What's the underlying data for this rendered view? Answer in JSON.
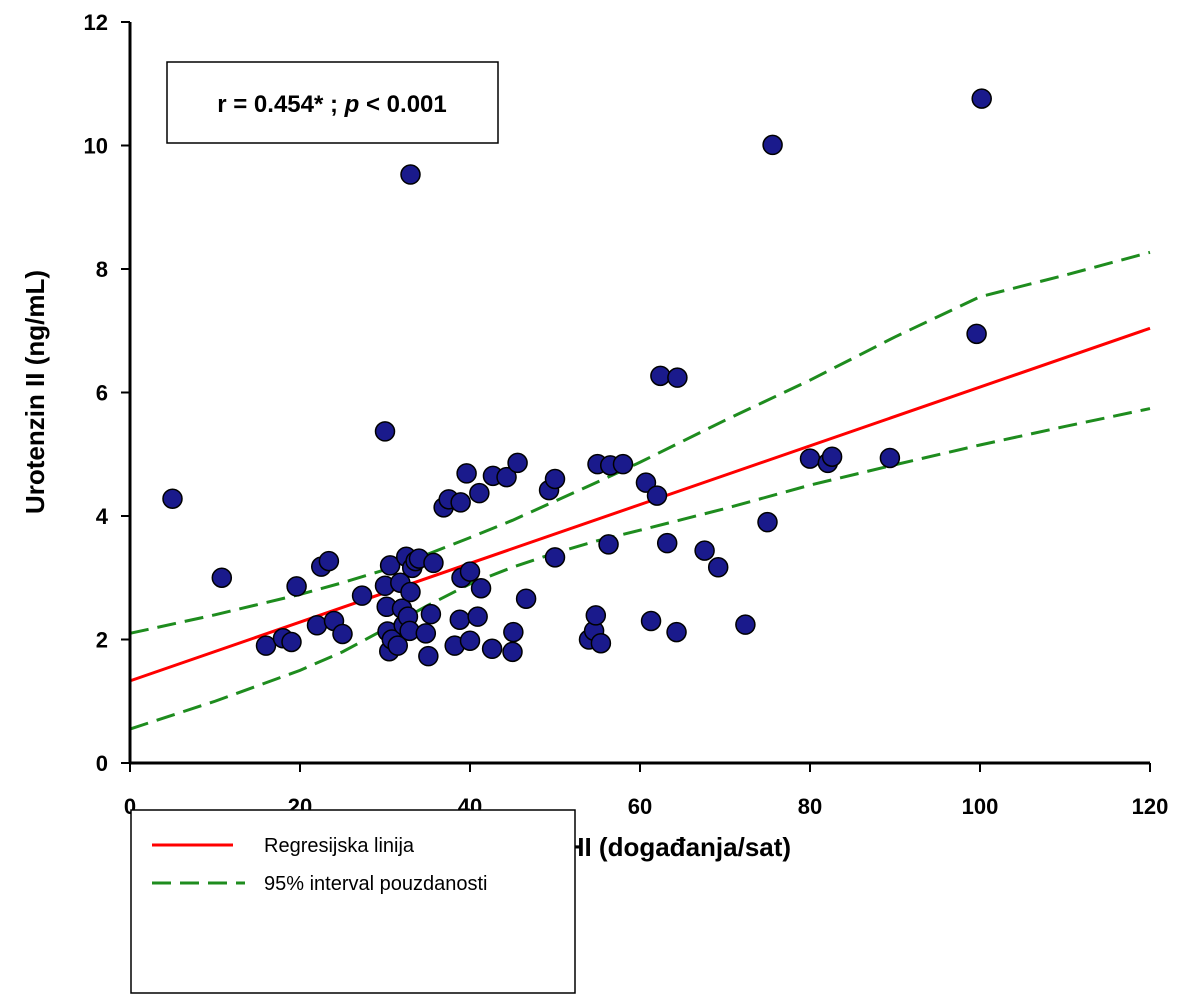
{
  "chart_data": {
    "type": "scatter",
    "xlabel": "AHI (događanja/sat)",
    "ylabel": "Urotenzin II (ng/mL)",
    "xlim": [
      0,
      120
    ],
    "ylim": [
      0,
      12
    ],
    "xticks": [
      "0",
      "20",
      "40",
      "60",
      "80",
      "100",
      "120"
    ],
    "yticks": [
      "0",
      "2",
      "4",
      "6",
      "8",
      "10",
      "12"
    ],
    "annotation": {
      "prefix": "r = 0.454* ; ",
      "p_symbol": "p",
      "suffix": " < 0.001"
    },
    "colors": {
      "points": "#1a1a8c",
      "regression": "#ff0000",
      "confidence": "#1e8c1e"
    },
    "legend": {
      "position": "bottom-left",
      "entries": [
        {
          "label": "Regresijska linija",
          "style": "solid",
          "color": "#ff0000"
        },
        {
          "label": "95% interval pouzdanosti",
          "style": "dashed",
          "color": "#1e8c1e"
        }
      ]
    },
    "regression_line": {
      "x": [
        0,
        120
      ],
      "y": [
        1.33,
        7.04
      ]
    },
    "ci_upper": {
      "x": [
        0,
        10,
        20,
        25,
        30,
        35,
        40,
        45,
        50,
        55,
        60,
        70,
        80,
        90,
        100,
        110,
        120
      ],
      "y": [
        2.1,
        2.4,
        2.73,
        2.92,
        3.13,
        3.38,
        3.65,
        3.93,
        4.24,
        4.55,
        4.87,
        5.55,
        6.2,
        6.9,
        7.55,
        7.9,
        8.27
      ]
    },
    "ci_lower": {
      "x": [
        0,
        10,
        20,
        25,
        30,
        35,
        40,
        45,
        50,
        55,
        60,
        70,
        80,
        90,
        100,
        110,
        120
      ],
      "y": [
        0.55,
        1.0,
        1.5,
        1.8,
        2.17,
        2.55,
        2.9,
        3.17,
        3.4,
        3.6,
        3.77,
        4.12,
        4.5,
        4.83,
        5.15,
        5.45,
        5.74
      ]
    },
    "points": [
      {
        "x": 5,
        "y": 4.28
      },
      {
        "x": 10.8,
        "y": 3.0
      },
      {
        "x": 16,
        "y": 1.9
      },
      {
        "x": 18,
        "y": 2.02
      },
      {
        "x": 19,
        "y": 1.96
      },
      {
        "x": 19.6,
        "y": 2.86
      },
      {
        "x": 22,
        "y": 2.23
      },
      {
        "x": 22.5,
        "y": 3.18
      },
      {
        "x": 23.4,
        "y": 3.27
      },
      {
        "x": 24,
        "y": 2.3
      },
      {
        "x": 25,
        "y": 2.09
      },
      {
        "x": 27.3,
        "y": 2.71
      },
      {
        "x": 30,
        "y": 5.37
      },
      {
        "x": 30,
        "y": 2.87
      },
      {
        "x": 30.2,
        "y": 2.53
      },
      {
        "x": 30.3,
        "y": 2.13
      },
      {
        "x": 30.5,
        "y": 1.81
      },
      {
        "x": 30.6,
        "y": 3.2
      },
      {
        "x": 30.8,
        "y": 2.0
      },
      {
        "x": 31.5,
        "y": 1.9
      },
      {
        "x": 31.8,
        "y": 2.92
      },
      {
        "x": 32,
        "y": 2.5
      },
      {
        "x": 32.2,
        "y": 2.23
      },
      {
        "x": 32.5,
        "y": 3.34
      },
      {
        "x": 32.7,
        "y": 2.37
      },
      {
        "x": 32.9,
        "y": 2.14
      },
      {
        "x": 33,
        "y": 9.53
      },
      {
        "x": 33,
        "y": 2.77
      },
      {
        "x": 33.2,
        "y": 3.16
      },
      {
        "x": 33.6,
        "y": 3.27
      },
      {
        "x": 34,
        "y": 3.31
      },
      {
        "x": 34.8,
        "y": 2.1
      },
      {
        "x": 35.1,
        "y": 1.73
      },
      {
        "x": 35.4,
        "y": 2.41
      },
      {
        "x": 35.7,
        "y": 3.24
      },
      {
        "x": 36.9,
        "y": 4.14
      },
      {
        "x": 37.5,
        "y": 4.27
      },
      {
        "x": 38.2,
        "y": 1.9
      },
      {
        "x": 38.8,
        "y": 2.32
      },
      {
        "x": 38.9,
        "y": 4.22
      },
      {
        "x": 39,
        "y": 3.0
      },
      {
        "x": 39.6,
        "y": 4.69
      },
      {
        "x": 40,
        "y": 3.1
      },
      {
        "x": 40,
        "y": 1.98
      },
      {
        "x": 40.9,
        "y": 2.37
      },
      {
        "x": 41.1,
        "y": 4.37
      },
      {
        "x": 41.3,
        "y": 2.83
      },
      {
        "x": 42.6,
        "y": 1.85
      },
      {
        "x": 42.7,
        "y": 4.65
      },
      {
        "x": 44.3,
        "y": 4.63
      },
      {
        "x": 45,
        "y": 1.8
      },
      {
        "x": 45.1,
        "y": 2.12
      },
      {
        "x": 45.6,
        "y": 4.86
      },
      {
        "x": 46.6,
        "y": 2.66
      },
      {
        "x": 49.3,
        "y": 4.42
      },
      {
        "x": 50,
        "y": 4.6
      },
      {
        "x": 50,
        "y": 3.33
      },
      {
        "x": 54,
        "y": 2.0
      },
      {
        "x": 54.6,
        "y": 2.14
      },
      {
        "x": 54.8,
        "y": 2.39
      },
      {
        "x": 55,
        "y": 4.84
      },
      {
        "x": 55.4,
        "y": 1.94
      },
      {
        "x": 56.3,
        "y": 3.54
      },
      {
        "x": 56.5,
        "y": 4.82
      },
      {
        "x": 58,
        "y": 4.84
      },
      {
        "x": 60.7,
        "y": 4.54
      },
      {
        "x": 61.3,
        "y": 2.3
      },
      {
        "x": 62,
        "y": 4.33
      },
      {
        "x": 62.4,
        "y": 6.27
      },
      {
        "x": 63.2,
        "y": 3.56
      },
      {
        "x": 64.3,
        "y": 2.12
      },
      {
        "x": 64.4,
        "y": 6.24
      },
      {
        "x": 67.6,
        "y": 3.44
      },
      {
        "x": 69.2,
        "y": 3.17
      },
      {
        "x": 72.4,
        "y": 2.24
      },
      {
        "x": 75,
        "y": 3.9
      },
      {
        "x": 75.6,
        "y": 10.01
      },
      {
        "x": 80,
        "y": 4.93
      },
      {
        "x": 82.1,
        "y": 4.86
      },
      {
        "x": 82.6,
        "y": 4.96
      },
      {
        "x": 89.4,
        "y": 4.94
      },
      {
        "x": 99.6,
        "y": 6.95
      },
      {
        "x": 100.2,
        "y": 10.76
      }
    ]
  }
}
